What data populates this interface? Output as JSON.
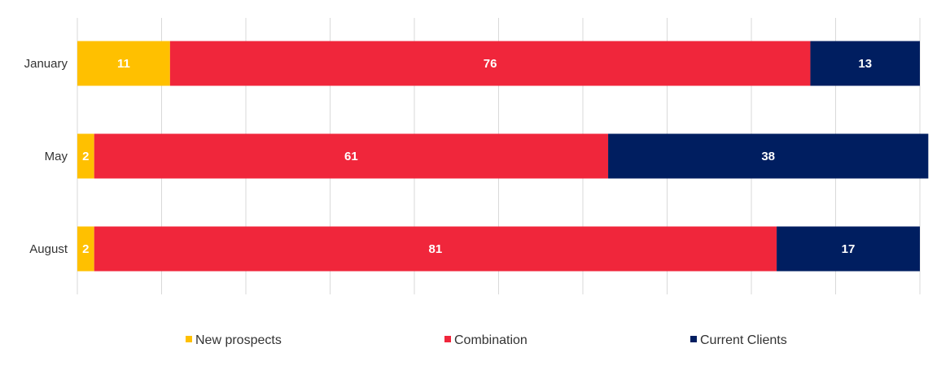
{
  "chart_data": {
    "type": "bar",
    "orientation": "horizontal",
    "stacked": true,
    "categories": [
      "January",
      "May",
      "August"
    ],
    "series": [
      {
        "name": "New prospects",
        "color": "#FFC000",
        "values": [
          11,
          2,
          2
        ]
      },
      {
        "name": "Combination",
        "color": "#F0263B",
        "values": [
          76,
          61,
          81
        ]
      },
      {
        "name": "Current Clients",
        "color": "#001E60",
        "values": [
          13,
          38,
          17
        ]
      }
    ],
    "xlim": [
      0,
      100
    ],
    "grid": true,
    "legend_position": "bottom",
    "title": "",
    "xlabel": "",
    "ylabel": ""
  }
}
